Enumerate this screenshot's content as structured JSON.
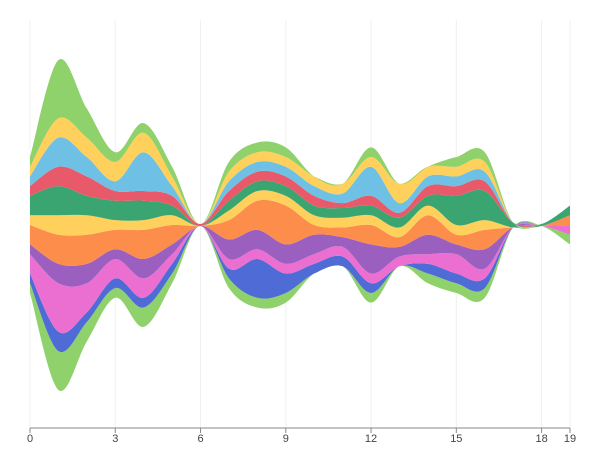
{
  "chart_data": {
    "type": "streamgraph",
    "x": [
      0,
      1,
      2,
      3,
      4,
      5,
      6,
      7,
      8,
      9,
      10,
      11,
      12,
      13,
      14,
      15,
      16,
      17,
      18,
      19
    ],
    "xlim": [
      0,
      19
    ],
    "xticks": [
      0,
      3,
      6,
      9,
      12,
      15,
      18,
      19
    ],
    "grid": true,
    "series": [
      {
        "color": "#8fd16a",
        "values": [
          1,
          4,
          2,
          1,
          2,
          1,
          0,
          1,
          1,
          1,
          0,
          0,
          1,
          0,
          1,
          1,
          1,
          0,
          0,
          1
        ]
      },
      {
        "color": "#4e6bd6",
        "values": [
          1,
          2,
          1,
          1,
          1,
          1,
          0,
          1,
          4,
          2,
          1,
          1,
          1,
          0,
          1,
          1,
          1,
          0,
          0,
          0
        ]
      },
      {
        "color": "#ea6fd0",
        "values": [
          2,
          5,
          3,
          2,
          2,
          1,
          0,
          1,
          1,
          1,
          1,
          1,
          1,
          1,
          1,
          2,
          1,
          0,
          0,
          1
        ]
      },
      {
        "color": "#9b5fc0",
        "values": [
          1,
          2,
          2,
          1,
          2,
          1,
          0,
          2,
          2,
          2,
          2,
          1,
          3,
          1,
          2,
          1,
          2,
          0,
          0,
          0
        ]
      },
      {
        "color": "#fc8d4a",
        "values": [
          2,
          3,
          3,
          2,
          3,
          2,
          0,
          2,
          3,
          4,
          1,
          1,
          2,
          1,
          2,
          1,
          2,
          0,
          0,
          1
        ]
      },
      {
        "color": "#ffd15c",
        "values": [
          1,
          2,
          2,
          1,
          1,
          1,
          0,
          1,
          1,
          1,
          1,
          1,
          1,
          1,
          1,
          1,
          1,
          0,
          0,
          0
        ]
      },
      {
        "color": "#3aa570",
        "values": [
          2,
          3,
          2,
          2,
          2,
          1,
          0,
          1,
          1,
          1,
          1,
          1,
          1,
          1,
          1,
          3,
          3,
          0.5,
          0.2,
          1
        ]
      },
      {
        "color": "#e8596a",
        "values": [
          1,
          2,
          2,
          1,
          1,
          1,
          0.2,
          1,
          1,
          1,
          1,
          0.5,
          1,
          0.5,
          1,
          1,
          1,
          0,
          0,
          0
        ]
      },
      {
        "color": "#6ec1e4",
        "values": [
          1,
          3,
          2,
          1,
          4,
          1,
          0,
          1,
          1,
          1,
          1,
          1,
          3,
          1,
          1,
          1,
          1,
          0,
          0,
          0
        ]
      },
      {
        "color": "#ffd15c",
        "values": [
          1,
          2,
          2,
          2,
          2,
          1,
          0,
          1,
          1,
          1,
          1,
          1,
          1,
          2,
          1,
          1,
          1,
          0,
          0,
          0
        ]
      },
      {
        "color": "#8fd16a",
        "values": [
          1,
          6,
          3,
          1,
          1,
          1,
          0,
          1,
          1,
          1,
          0,
          0,
          1,
          0,
          0,
          1,
          1,
          0,
          0,
          0
        ]
      }
    ]
  }
}
